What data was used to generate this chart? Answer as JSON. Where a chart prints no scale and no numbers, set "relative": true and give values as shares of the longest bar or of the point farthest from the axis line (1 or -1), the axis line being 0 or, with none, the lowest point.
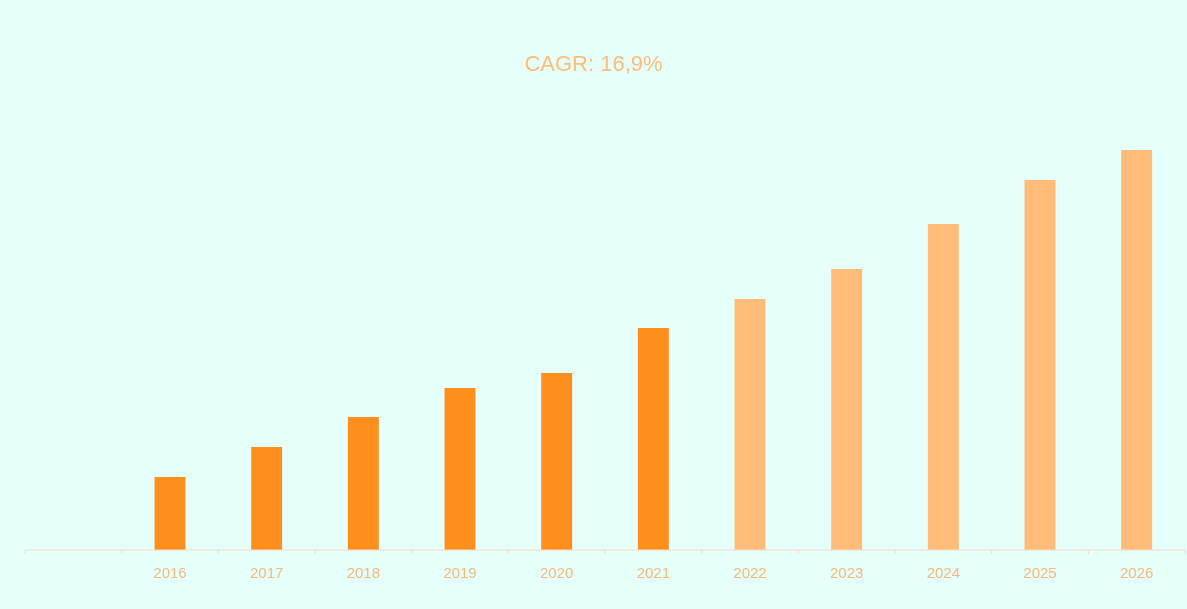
{
  "chart_data": {
    "type": "bar",
    "title": "CAGR: 16,9%",
    "relative": true,
    "categories": [
      null,
      "2016",
      "2017",
      "2018",
      "2019",
      "2020",
      "2021",
      "2022",
      "2023",
      "2024",
      "2025",
      "2026"
    ],
    "values": [
      null,
      0.1825,
      0.2575,
      0.3325,
      0.405,
      0.4425,
      0.555,
      0.6275,
      0.7025,
      0.815,
      0.925,
      1
    ],
    "colors": [
      null,
      "#ff8f1c",
      "#ff8f1c",
      "#ff8f1c",
      "#ff8f1c",
      "#ff8f1c",
      "#ff8f1c",
      "#ffbc78",
      "#ffbc78",
      "#ffbc78",
      "#ffbc78",
      "#ffbc78"
    ]
  }
}
